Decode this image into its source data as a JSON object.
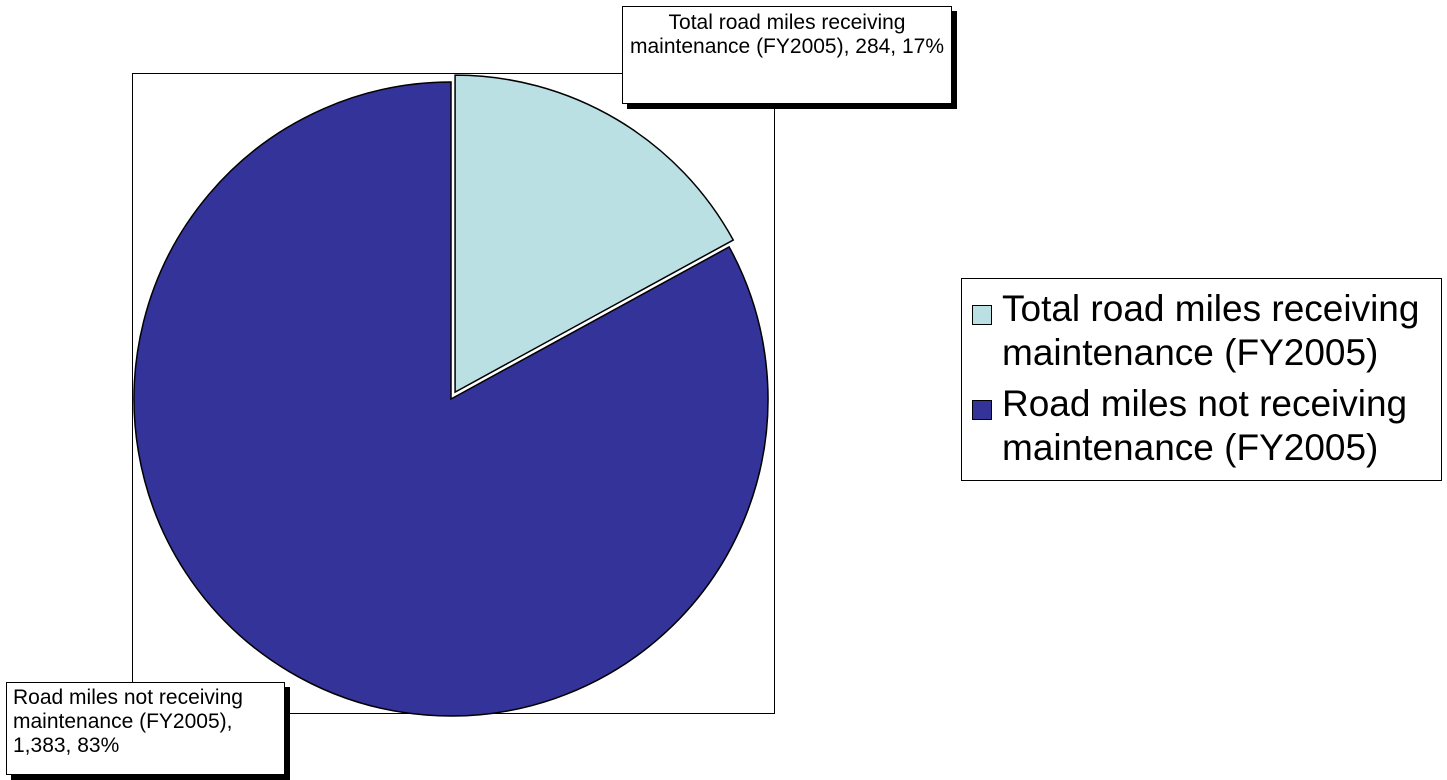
{
  "chart_data": {
    "type": "pie",
    "title": "",
    "slices": [
      {
        "label": "Total road miles receiving maintenance (FY2005)",
        "value": 284,
        "percent": "17%",
        "value_text": "284",
        "color": "#BBE0E3",
        "callout": "Total road miles receiving maintenance (FY2005), 284, 17%",
        "exploded": true
      },
      {
        "label": "Road miles not receiving maintenance (FY2005)",
        "value": 1383,
        "percent": "83%",
        "value_text": "1,383",
        "color": "#333399",
        "callout": "Road miles not receiving maintenance (FY2005), 1,383, 83%",
        "exploded": false
      }
    ],
    "legend": {
      "position": "right",
      "entries": [
        "Total road miles receiving\nmaintenance (FY2005)",
        "Road miles not receiving\nmaintenance (FY2005)"
      ]
    }
  }
}
